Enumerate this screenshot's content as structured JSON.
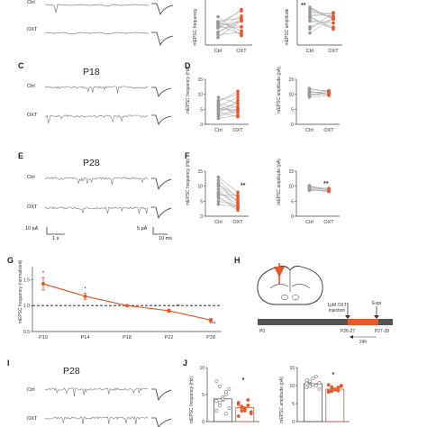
{
  "colors": {
    "oxt": "#e8582a",
    "ctrl": "#9a9a9a",
    "trace": "#7a7a7a",
    "axis": "#444444",
    "bar_dark": "#555555"
  },
  "panels": {
    "A": {
      "ctrl_label": "Ctrl",
      "oxt_label": "OXT"
    },
    "B": {
      "ylabel_freq": "mEPSC frequency",
      "ylabel_amp": "mEPSC amplitude",
      "sig_amp": "**",
      "xticks": [
        "Ctrl",
        "OXT"
      ]
    },
    "C": {
      "letter": "C",
      "age": "P18",
      "ctrl_label": "Ctrl",
      "oxt_label": "OXT"
    },
    "D": {
      "letter": "D",
      "ylabel_freq": "mEPSC frequency (Hz)",
      "ylabel_amp": "mEPSC amplitude (pA)",
      "xticks": [
        "Ctrl",
        "OXT"
      ]
    },
    "E": {
      "letter": "E",
      "age": "P28",
      "ctrl_label": "Ctrl",
      "oxt_label": "OXT",
      "scale_pa_left": "10 pA",
      "scale_s": "1 s",
      "scale_pa_right": "5 pA",
      "scale_ms": "10 ms"
    },
    "F": {
      "letter": "F",
      "ylabel_freq": "mEPSC frequency (Hz)",
      "ylabel_amp": "mEPSC amplitude (pA)",
      "sig_freq": "**",
      "sig_amp": "**",
      "xticks": [
        "Ctrl",
        "OXT"
      ]
    },
    "G": {
      "letter": "G",
      "ylabel": "mEPSC frequency (normalized)"
    },
    "H": {
      "letter": "H",
      "inj_label_1": "1μM OXT",
      "inj_label_2": "injection",
      "expt_label": "Expt",
      "t0": "P0",
      "t1": "P26-27",
      "t2": "P27-28",
      "dur": "24h"
    },
    "I": {
      "letter": "I",
      "age": "P28",
      "ctrl_label": "Ctrl",
      "oxt_label": "OXT"
    },
    "J": {
      "letter": "J",
      "ylabel_freq": "mEPSC frequency (Hz)",
      "ylabel_amp": "mEPSC amplitude (pA)",
      "sig_freq": "*",
      "sig_amp": "*"
    }
  },
  "chart_data": [
    {
      "panel": "G",
      "type": "line",
      "categories": [
        "P10",
        "P14",
        "P18",
        "P22",
        "P28"
      ],
      "values": [
        1.42,
        1.18,
        1.0,
        0.9,
        0.72
      ],
      "errors": [
        0.12,
        0.06,
        0.0,
        0.03,
        0.03
      ],
      "significance": [
        "*",
        "*",
        "",
        "**",
        "***"
      ],
      "reference_line": 1.0,
      "ylim": [
        0.5,
        1.75
      ],
      "yticks": [
        "0.5",
        "1.0",
        "1.5"
      ]
    },
    {
      "panel": "D-frequency",
      "type": "scatter",
      "yticks": [
        "0",
        "5",
        "10",
        "15"
      ],
      "ylim": [
        0,
        15
      ],
      "pairs": [
        [
          2,
          3
        ],
        [
          3,
          5
        ],
        [
          4,
          2.5
        ],
        [
          5,
          7
        ],
        [
          5.5,
          4
        ],
        [
          6,
          9
        ],
        [
          7,
          5.5
        ],
        [
          8,
          10
        ],
        [
          4.5,
          6
        ],
        [
          3.5,
          8
        ],
        [
          6.5,
          3
        ],
        [
          9,
          7
        ],
        [
          2.5,
          4.5
        ],
        [
          7.5,
          11
        ],
        [
          5,
          5
        ]
      ]
    },
    {
      "panel": "D-amplitude",
      "type": "scatter",
      "yticks": [
        "0",
        "5",
        "10",
        "15"
      ],
      "ylim": [
        0,
        15
      ],
      "pairs": [
        [
          10,
          10.5
        ],
        [
          11,
          10
        ],
        [
          9.5,
          10.2
        ],
        [
          10.5,
          11
        ],
        [
          12,
          10.8
        ],
        [
          9,
          9.6
        ],
        [
          10.8,
          10.4
        ],
        [
          11.5,
          11.2
        ],
        [
          10.2,
          9.8
        ],
        [
          9.8,
          10.6
        ]
      ]
    },
    {
      "panel": "F-frequency",
      "type": "scatter",
      "yticks": [
        "0",
        "5",
        "10",
        "15"
      ],
      "ylim": [
        0,
        15
      ],
      "pairs": [
        [
          8,
          4
        ],
        [
          10,
          5
        ],
        [
          6,
          3
        ],
        [
          12,
          6
        ],
        [
          7,
          7
        ],
        [
          9,
          2.5
        ],
        [
          11,
          4.5
        ],
        [
          5,
          3.5
        ],
        [
          13,
          8
        ],
        [
          7.5,
          5.5
        ],
        [
          6.5,
          2
        ],
        [
          10.5,
          6.5
        ],
        [
          4,
          3
        ]
      ]
    },
    {
      "panel": "F-amplitude",
      "type": "scatter",
      "yticks": [
        "0",
        "5",
        "10",
        "15"
      ],
      "ylim": [
        0,
        15
      ],
      "pairs": [
        [
          9,
          8.5
        ],
        [
          10,
          8.8
        ],
        [
          8.8,
          8.2
        ],
        [
          9.5,
          9.1
        ],
        [
          10.2,
          8.6
        ],
        [
          9.2,
          8.9
        ],
        [
          8.6,
          8.4
        ],
        [
          9.8,
          9.3
        ]
      ]
    },
    {
      "panel": "J-frequency",
      "type": "bar",
      "categories": [
        "Ctrl",
        "OXT"
      ],
      "values": [
        4.2,
        2.6
      ],
      "ylim": [
        0,
        10
      ],
      "yticks": [
        "0",
        "5",
        "10"
      ],
      "points": [
        [
          2,
          3.5,
          4.5,
          5,
          6,
          7.5,
          3,
          4,
          5.5,
          2.5,
          3.8,
          6.5,
          4.2,
          1.5
        ],
        [
          1,
          2,
          2.5,
          3,
          1.5,
          3.5,
          2.8,
          2.2,
          4,
          1.8,
          3.2,
          2.6,
          2,
          3
        ]
      ]
    },
    {
      "panel": "J-amplitude",
      "type": "bar",
      "categories": [
        "Ctrl",
        "OXT"
      ],
      "values": [
        10.5,
        9.0
      ],
      "ylim": [
        0,
        15
      ],
      "yticks": [
        "0",
        "5",
        "10",
        "15"
      ],
      "points": [
        [
          9.5,
          11,
          12,
          10,
          10.8,
          11.5,
          9.8,
          10.2,
          12.5,
          9,
          10.6,
          11.2
        ],
        [
          8.5,
          9.2,
          8.8,
          9.5,
          10,
          8.2,
          9.6,
          9,
          8.6,
          9.8,
          10.2,
          8.4
        ]
      ]
    }
  ]
}
